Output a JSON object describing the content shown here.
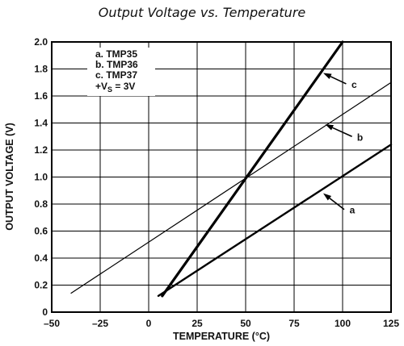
{
  "chart_data": {
    "type": "line",
    "title": "Output Voltage vs. Temperature",
    "xlabel": "TEMPERATURE (°C)",
    "ylabel": "OUTPUT VOLTAGE (V)",
    "xlim": [
      -50,
      125
    ],
    "ylim": [
      0,
      2.0
    ],
    "grid": true,
    "x_ticks": [
      -50,
      -25,
      0,
      25,
      50,
      75,
      100,
      125
    ],
    "x_tick_labels": [
      "–50",
      "–25",
      "0",
      "25",
      "50",
      "75",
      "100",
      "125"
    ],
    "y_ticks": [
      0,
      0.2,
      0.4,
      0.6,
      0.8,
      1.0,
      1.2,
      1.4,
      1.6,
      1.8,
      2.0
    ],
    "y_tick_labels": [
      "0",
      "0.2",
      "0.4",
      "0.6",
      "0.8",
      "1.0",
      "1.2",
      "1.4",
      "1.6",
      "1.8",
      "2.0"
    ],
    "legend_lines": [
      "a.  TMP35",
      "b.  TMP36",
      "c.  TMP37"
    ],
    "legend_supply": {
      "prefix": "+V",
      "sub": "S",
      "suffix": " = 3V"
    },
    "series": [
      {
        "name": "a",
        "x": [
          5,
          125
        ],
        "y": [
          0.12,
          1.24
        ],
        "stroke_width": 2.4
      },
      {
        "name": "b",
        "x": [
          -40,
          125
        ],
        "y": [
          0.14,
          1.7
        ],
        "stroke_width": 1.2
      },
      {
        "name": "c",
        "x": [
          7,
          100
        ],
        "y": [
          0.12,
          2.0
        ],
        "stroke_width": 3.2
      }
    ],
    "annotations": [
      {
        "label": "c",
        "target": [
          90,
          1.77
        ],
        "text_at": [
          106,
          1.66
        ]
      },
      {
        "label": "b",
        "target": [
          91,
          1.39
        ],
        "text_at": [
          109,
          1.27
        ]
      },
      {
        "label": "a",
        "target": [
          90,
          0.88
        ],
        "text_at": [
          105,
          0.73
        ]
      }
    ]
  }
}
